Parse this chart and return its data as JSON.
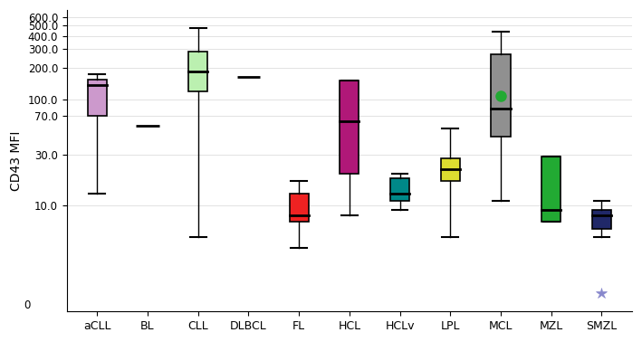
{
  "categories": [
    "aCLL",
    "BL",
    "CLL",
    "DLBCL",
    "FL",
    "HCL",
    "HCLv",
    "LPL",
    "MCL",
    "MZL",
    "SMZL"
  ],
  "box_color_map": {
    "aCLL": "#cc99cc",
    "BL": "#cc99cc",
    "CLL": "#bbf0b0",
    "DLBCL": "#bbf0b0",
    "FL": "#ee2222",
    "HCL": "#b01878",
    "HCLv": "#008888",
    "LPL": "#dddd30",
    "MCL": "#909090",
    "MZL": "#22aa33",
    "SMZL": "#202868"
  },
  "boxes": {
    "aCLL": {
      "q1": 70,
      "median": 138,
      "q3": 155,
      "whislo": 13,
      "whishi": 175,
      "fliers": [],
      "single_line": false
    },
    "BL": {
      "q1": 57,
      "median": 57,
      "q3": 57,
      "whislo": 57,
      "whishi": 57,
      "fliers": [],
      "single_line": true
    },
    "CLL": {
      "q1": 120,
      "median": 183,
      "q3": 283,
      "whislo": 5,
      "whishi": 475,
      "fliers": [],
      "single_line": false
    },
    "DLBCL": {
      "q1": 163,
      "median": 163,
      "q3": 163,
      "whislo": 163,
      "whishi": 163,
      "fliers": [],
      "single_line": true
    },
    "FL": {
      "q1": 7,
      "median": 8,
      "q3": 13,
      "whislo": 4,
      "whishi": 17,
      "fliers": [],
      "single_line": false
    },
    "HCL": {
      "q1": 20,
      "median": 63,
      "q3": 152,
      "whislo": 8,
      "whishi": 152,
      "fliers": [],
      "single_line": false
    },
    "HCLv": {
      "q1": 11,
      "median": 13,
      "q3": 18,
      "whislo": 9,
      "whishi": 20,
      "fliers": [],
      "single_line": false
    },
    "LPL": {
      "q1": 17,
      "median": 22,
      "q3": 28,
      "whislo": 5,
      "whishi": 53,
      "fliers": [],
      "single_line": false
    },
    "MCL": {
      "q1": 45,
      "median": 83,
      "q3": 265,
      "whislo": 11,
      "whishi": 440,
      "fliers": [
        108
      ],
      "single_line": false
    },
    "MZL": {
      "q1": 7,
      "median": 9,
      "q3": 29,
      "whislo": 7,
      "whishi": 29,
      "fliers": [],
      "single_line": false
    },
    "SMZL": {
      "q1": 6,
      "median": 8,
      "q3": 9,
      "whislo": 5,
      "whishi": 11,
      "fliers": [
        1.5
      ],
      "single_line": false
    }
  },
  "ytick_vals": [
    10,
    30,
    70,
    100,
    200,
    300,
    400,
    500,
    600
  ],
  "ytick_labels": [
    "10.0",
    "30.0",
    "70.0",
    "100.0",
    "200.0",
    "300.0",
    "400.0",
    "500.0",
    "600.0"
  ],
  "ylabel": "CD43 MFI",
  "background_color": "#ffffff",
  "smzl_star_color": "#8888cc",
  "mcl_outlier_color": "#22aa33",
  "box_width": 0.38,
  "figsize": [
    7.09,
    3.78
  ],
  "dpi": 100
}
